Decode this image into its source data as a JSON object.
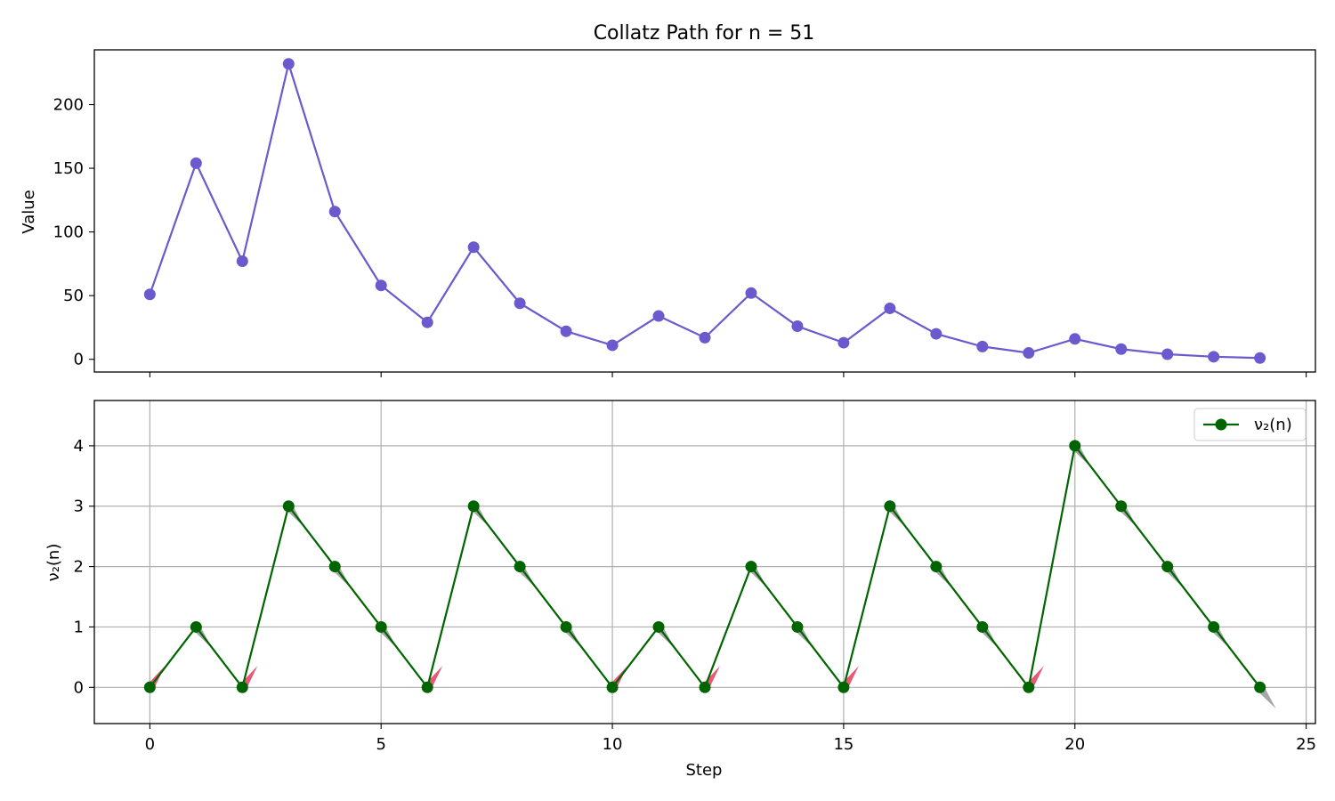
{
  "chart_data": [
    {
      "type": "line",
      "title": "Collatz Path for n = 51",
      "xlabel": "",
      "ylabel": "Value",
      "xlim": [
        -1.2,
        25.2
      ],
      "ylim": [
        -10,
        243
      ],
      "x_ticks": [
        0,
        5,
        10,
        15,
        20,
        25
      ],
      "y_ticks": [
        0,
        50,
        100,
        150,
        200
      ],
      "grid": false,
      "color": "#6a5acd",
      "x": [
        0,
        1,
        2,
        3,
        4,
        5,
        6,
        7,
        8,
        9,
        10,
        11,
        12,
        13,
        14,
        15,
        16,
        17,
        18,
        19,
        20,
        21,
        22,
        23,
        24
      ],
      "values": [
        51,
        154,
        77,
        232,
        116,
        58,
        29,
        88,
        44,
        22,
        11,
        34,
        17,
        52,
        26,
        13,
        40,
        20,
        10,
        5,
        16,
        8,
        4,
        2,
        1
      ]
    },
    {
      "type": "line",
      "title": "",
      "xlabel": "Step",
      "ylabel": "ν₂(n)",
      "xlim": [
        -1.2,
        25.2
      ],
      "ylim": [
        -0.6,
        4.75
      ],
      "x_ticks": [
        0,
        5,
        10,
        15,
        20,
        25
      ],
      "y_ticks": [
        0,
        1,
        2,
        3,
        4
      ],
      "grid": true,
      "legend": {
        "placement": "top-right",
        "entries": [
          "ν₂(n)"
        ]
      },
      "color": "#006400",
      "up_arrow_color": "#dc143c",
      "down_arrow_color": "#808080",
      "x": [
        0,
        1,
        2,
        3,
        4,
        5,
        6,
        7,
        8,
        9,
        10,
        11,
        12,
        13,
        14,
        15,
        16,
        17,
        18,
        19,
        20,
        21,
        22,
        23,
        24
      ],
      "series": [
        {
          "name": "ν₂(n)",
          "values": [
            0,
            1,
            0,
            3,
            2,
            1,
            0,
            3,
            2,
            1,
            0,
            1,
            0,
            2,
            1,
            0,
            3,
            2,
            1,
            0,
            4,
            3,
            2,
            1,
            0
          ]
        }
      ]
    }
  ]
}
